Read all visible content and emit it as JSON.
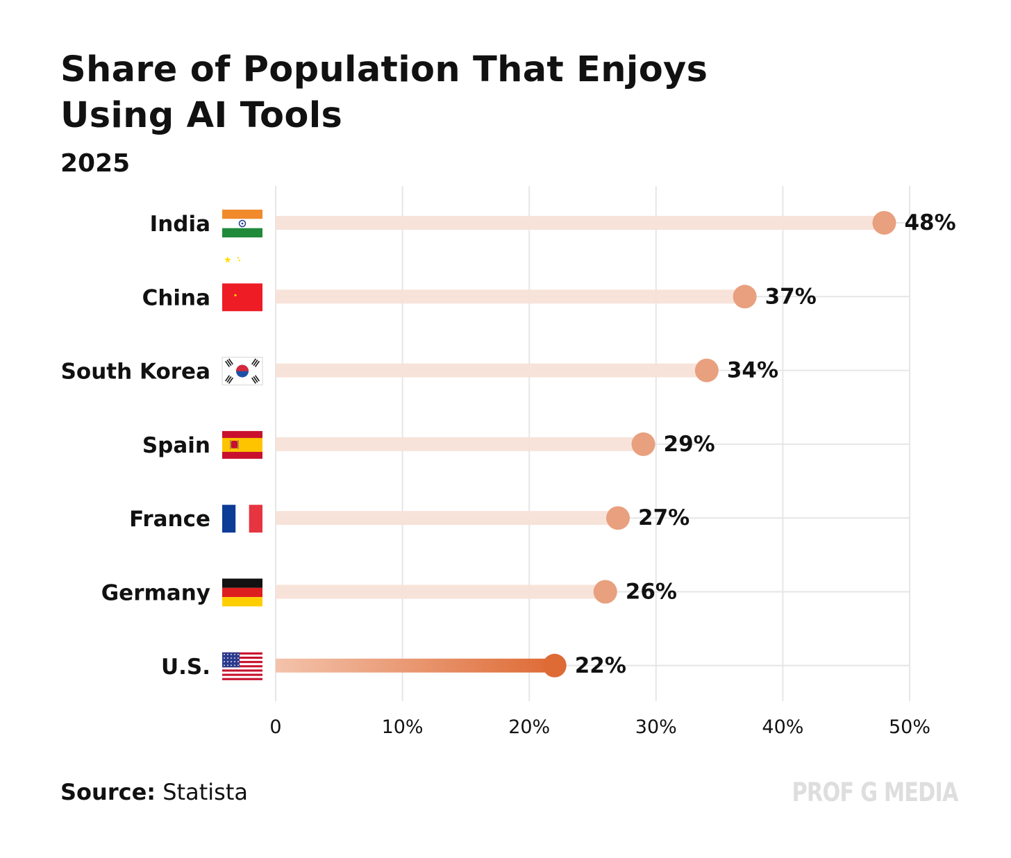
{
  "chart_data": {
    "type": "bar",
    "title_lines": [
      "Share of Population That Enjoys",
      "Using AI Tools"
    ],
    "subtitle": "2025",
    "categories": [
      "India",
      "China",
      "South Korea",
      "Spain",
      "France",
      "Germany",
      "U.S."
    ],
    "values": [
      48,
      37,
      34,
      29,
      27,
      26,
      22
    ],
    "value_labels": [
      "48%",
      "37%",
      "34%",
      "29%",
      "27%",
      "26%",
      "22%"
    ],
    "highlighted_category": "U.S.",
    "xlim": [
      0,
      50
    ],
    "x_ticks": [
      0,
      10,
      20,
      30,
      40,
      50
    ],
    "x_tick_labels": [
      "0",
      "10%",
      "20%",
      "30%",
      "40%",
      "50%"
    ],
    "xlabel": "",
    "ylabel": "",
    "grid": true,
    "flags": [
      "india-flag",
      "china-flag",
      "south-korea-flag",
      "spain-flag",
      "france-flag",
      "germany-flag",
      "us-flag"
    ],
    "colors": {
      "dot": "#e8a07e",
      "bar": "#f7e1d7",
      "highlight_dot": "#de6a35",
      "highlight_bar_start": "#f3c3ab",
      "highlight_bar_end": "#de6a35",
      "grid": "#e6e6e6"
    }
  },
  "source": {
    "label": "Source:",
    "value": "Statista"
  },
  "watermark": "PROF G MEDIA"
}
